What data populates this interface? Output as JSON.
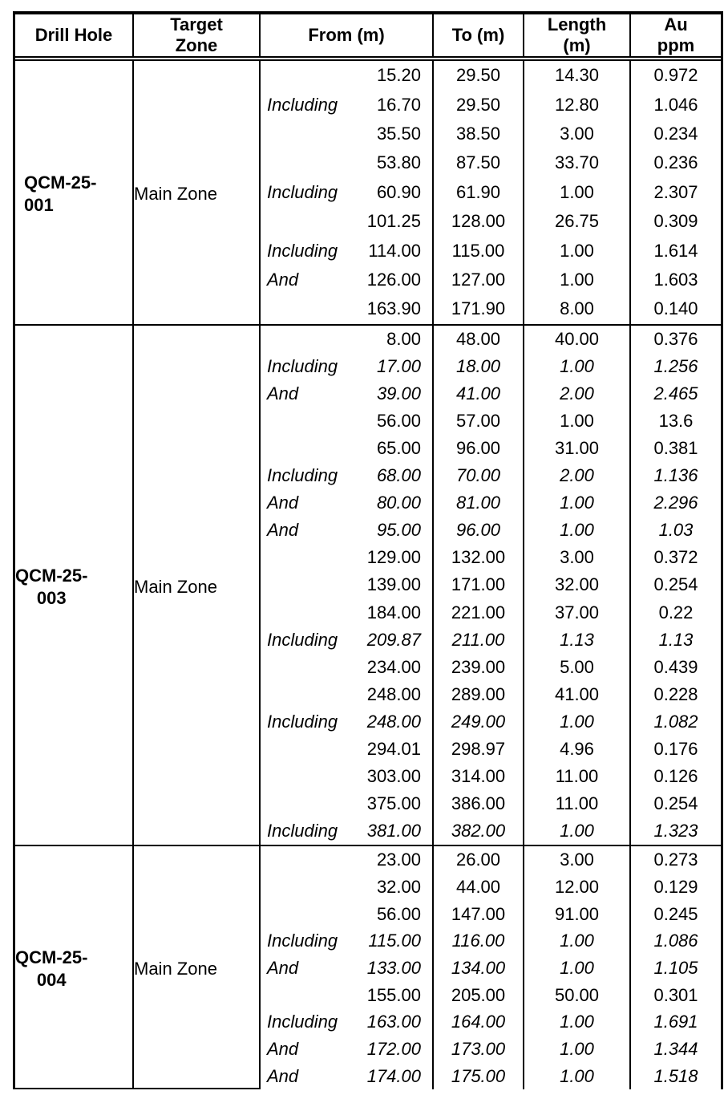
{
  "colors": {
    "text": "#000000",
    "border": "#000000",
    "background": "#ffffff"
  },
  "table": {
    "headers": [
      "Drill Hole",
      "Target\nZone",
      "From (m)",
      "To (m)",
      "Length\n(m)",
      "Au\nppm"
    ],
    "groups": [
      {
        "hole_id_lines": [
          "QCM-25-",
          "001"
        ],
        "id_align": "left",
        "zone": "Main Zone",
        "rows": [
          {
            "q": "",
            "from": "15.20",
            "to": "29.50",
            "len": "14.30",
            "au": "0.972",
            "italic": false
          },
          {
            "q": "Including",
            "from": "16.70",
            "to": "29.50",
            "len": "12.80",
            "au": "1.046",
            "italic": false
          },
          {
            "q": "",
            "from": "35.50",
            "to": "38.50",
            "len": "3.00",
            "au": "0.234",
            "italic": false
          },
          {
            "q": "",
            "from": "53.80",
            "to": "87.50",
            "len": "33.70",
            "au": "0.236",
            "italic": false
          },
          {
            "q": "Including",
            "from": "60.90",
            "to": "61.90",
            "len": "1.00",
            "au": "2.307",
            "italic": false
          },
          {
            "q": "",
            "from": "101.25",
            "to": "128.00",
            "len": "26.75",
            "au": "0.309",
            "italic": false
          },
          {
            "q": "Including",
            "from": "114.00",
            "to": "115.00",
            "len": "1.00",
            "au": "1.614",
            "italic": false
          },
          {
            "q": "And",
            "from": "126.00",
            "to": "127.00",
            "len": "1.00",
            "au": "1.603",
            "italic": false
          },
          {
            "q": "",
            "from": "163.90",
            "to": "171.90",
            "len": "8.00",
            "au": "0.140",
            "italic": false
          }
        ]
      },
      {
        "hole_id_lines": [
          "QCM-25-",
          "003"
        ],
        "id_align": "center",
        "zone": "Main Zone",
        "rows": [
          {
            "q": "",
            "from": "8.00",
            "to": "48.00",
            "len": "40.00",
            "au": "0.376",
            "italic": false
          },
          {
            "q": "Including",
            "from": "17.00",
            "to": "18.00",
            "len": "1.00",
            "au": "1.256",
            "italic": true
          },
          {
            "q": "And",
            "from": "39.00",
            "to": "41.00",
            "len": "2.00",
            "au": "2.465",
            "italic": true
          },
          {
            "q": "",
            "from": "56.00",
            "to": "57.00",
            "len": "1.00",
            "au": "13.6",
            "italic": false
          },
          {
            "q": "",
            "from": "65.00",
            "to": "96.00",
            "len": "31.00",
            "au": "0.381",
            "italic": false
          },
          {
            "q": "Including",
            "from": "68.00",
            "to": "70.00",
            "len": "2.00",
            "au": "1.136",
            "italic": true
          },
          {
            "q": "And",
            "from": "80.00",
            "to": "81.00",
            "len": "1.00",
            "au": "2.296",
            "italic": true
          },
          {
            "q": "And",
            "from": "95.00",
            "to": "96.00",
            "len": "1.00",
            "au": "1.03",
            "italic": true
          },
          {
            "q": "",
            "from": "129.00",
            "to": "132.00",
            "len": "3.00",
            "au": "0.372",
            "italic": false
          },
          {
            "q": "",
            "from": "139.00",
            "to": "171.00",
            "len": "32.00",
            "au": "0.254",
            "italic": false
          },
          {
            "q": "",
            "from": "184.00",
            "to": "221.00",
            "len": "37.00",
            "au": "0.22",
            "italic": false
          },
          {
            "q": "Including",
            "from": "209.87",
            "to": "211.00",
            "len": "1.13",
            "au": "1.13",
            "italic": true
          },
          {
            "q": "",
            "from": "234.00",
            "to": "239.00",
            "len": "5.00",
            "au": "0.439",
            "italic": false
          },
          {
            "q": "",
            "from": "248.00",
            "to": "289.00",
            "len": "41.00",
            "au": "0.228",
            "italic": false
          },
          {
            "q": "Including",
            "from": "248.00",
            "to": "249.00",
            "len": "1.00",
            "au": "1.082",
            "italic": true
          },
          {
            "q": "",
            "from": "294.01",
            "to": "298.97",
            "len": "4.96",
            "au": "0.176",
            "italic": false
          },
          {
            "q": "",
            "from": "303.00",
            "to": "314.00",
            "len": "11.00",
            "au": "0.126",
            "italic": false
          },
          {
            "q": "",
            "from": "375.00",
            "to": "386.00",
            "len": "11.00",
            "au": "0.254",
            "italic": false
          },
          {
            "q": "Including",
            "from": "381.00",
            "to": "382.00",
            "len": "1.00",
            "au": "1.323",
            "italic": true
          }
        ]
      },
      {
        "hole_id_lines": [
          "QCM-25-",
          "004"
        ],
        "id_align": "center",
        "zone": "Main Zone",
        "rows": [
          {
            "q": "",
            "from": "23.00",
            "to": "26.00",
            "len": "3.00",
            "au": "0.273",
            "italic": false
          },
          {
            "q": "",
            "from": "32.00",
            "to": "44.00",
            "len": "12.00",
            "au": "0.129",
            "italic": false
          },
          {
            "q": "",
            "from": "56.00",
            "to": "147.00",
            "len": "91.00",
            "au": "0.245",
            "italic": false
          },
          {
            "q": "Including",
            "from": "115.00",
            "to": "116.00",
            "len": "1.00",
            "au": "1.086",
            "italic": true
          },
          {
            "q": "And",
            "from": "133.00",
            "to": "134.00",
            "len": "1.00",
            "au": "1.105",
            "italic": true
          },
          {
            "q": "",
            "from": "155.00",
            "to": "205.00",
            "len": "50.00",
            "au": "0.301",
            "italic": false
          },
          {
            "q": "Including",
            "from": "163.00",
            "to": "164.00",
            "len": "1.00",
            "au": "1.691",
            "italic": true
          },
          {
            "q": "And",
            "from": "172.00",
            "to": "173.00",
            "len": "1.00",
            "au": "1.344",
            "italic": true
          },
          {
            "q": "And",
            "from": "174.00",
            "to": "175.00",
            "len": "1.00",
            "au": "1.518",
            "italic": true
          }
        ]
      }
    ]
  }
}
